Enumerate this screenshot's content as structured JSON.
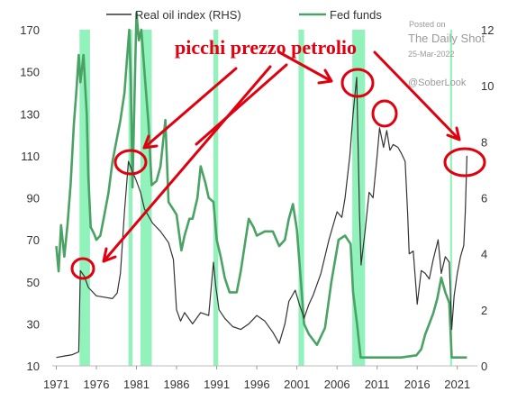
{
  "chart_data": {
    "type": "line",
    "title": "",
    "legend": {
      "placement": "top",
      "entries": [
        {
          "name": "Real oil index (RHS)",
          "color": "#333333"
        },
        {
          "name": "Fed funds",
          "color": "#4aa365"
        }
      ]
    },
    "y_left": {
      "ticks": [
        "170",
        "150",
        "130",
        "110",
        "90",
        "70",
        "50",
        "30",
        "10"
      ],
      "range": [
        10,
        170
      ]
    },
    "y_right": {
      "ticks": [
        "12",
        "10",
        "8",
        "6",
        "4",
        "2",
        "0"
      ],
      "range": [
        0,
        12
      ]
    },
    "x": {
      "ticks": [
        "1971",
        "1976",
        "1981",
        "1986",
        "1991",
        "1996",
        "2001",
        "2006",
        "2011",
        "2016",
        "2021"
      ],
      "range": [
        1970.5,
        2023.5
      ]
    },
    "recessions": [
      [
        1973.9,
        1975.2
      ],
      [
        1980.0,
        1980.5
      ],
      [
        1981.5,
        1982.9
      ],
      [
        1990.6,
        1991.2
      ],
      [
        2001.2,
        2001.9
      ],
      [
        2007.9,
        2009.5
      ],
      [
        2020.1,
        2020.35
      ]
    ],
    "series": [
      {
        "name": "Fed funds",
        "axis": "left",
        "color": "#4aa365",
        "points": [
          [
            1971.0,
            67
          ],
          [
            1971.3,
            55
          ],
          [
            1971.6,
            77
          ],
          [
            1972.0,
            62
          ],
          [
            1972.4,
            77
          ],
          [
            1972.8,
            97
          ],
          [
            1973.2,
            125
          ],
          [
            1973.5,
            140
          ],
          [
            1973.8,
            158
          ],
          [
            1974.0,
            145
          ],
          [
            1974.4,
            158
          ],
          [
            1974.8,
            130
          ],
          [
            1975.0,
            100
          ],
          [
            1975.3,
            76
          ],
          [
            1975.7,
            73
          ],
          [
            1976.0,
            70
          ],
          [
            1976.5,
            72
          ],
          [
            1977.0,
            82
          ],
          [
            1977.5,
            92
          ],
          [
            1978.0,
            107
          ],
          [
            1978.5,
            117
          ],
          [
            1979.0,
            127
          ],
          [
            1979.5,
            140
          ],
          [
            1979.8,
            155
          ],
          [
            1980.1,
            170
          ],
          [
            1980.3,
            145
          ],
          [
            1980.5,
            95
          ],
          [
            1980.8,
            145
          ],
          [
            1981.0,
            178
          ],
          [
            1981.3,
            165
          ],
          [
            1981.6,
            170
          ],
          [
            1982.0,
            150
          ],
          [
            1982.5,
            125
          ],
          [
            1982.9,
            96
          ],
          [
            1983.5,
            98
          ],
          [
            1984.0,
            105
          ],
          [
            1984.6,
            127
          ],
          [
            1985.0,
            88
          ],
          [
            1985.5,
            85
          ],
          [
            1986.0,
            82
          ],
          [
            1986.6,
            65
          ],
          [
            1987.0,
            72
          ],
          [
            1987.6,
            80
          ],
          [
            1988.0,
            80
          ],
          [
            1988.6,
            90
          ],
          [
            1989.0,
            105
          ],
          [
            1989.6,
            97
          ],
          [
            1990.0,
            90
          ],
          [
            1990.6,
            88
          ],
          [
            1991.0,
            70
          ],
          [
            1991.5,
            62
          ],
          [
            1992.0,
            52
          ],
          [
            1992.6,
            45
          ],
          [
            1993.0,
            45
          ],
          [
            1993.5,
            45
          ],
          [
            1994.0,
            55
          ],
          [
            1994.6,
            70
          ],
          [
            1995.0,
            80
          ],
          [
            1995.6,
            76
          ],
          [
            1996.0,
            72
          ],
          [
            1997.0,
            74
          ],
          [
            1998.0,
            74
          ],
          [
            1998.8,
            67
          ],
          [
            1999.5,
            70
          ],
          [
            2000.0,
            80
          ],
          [
            2000.5,
            87
          ],
          [
            2001.0,
            75
          ],
          [
            2001.5,
            50
          ],
          [
            2001.9,
            30
          ],
          [
            2002.5,
            25
          ],
          [
            2003.5,
            20
          ],
          [
            2004.5,
            28
          ],
          [
            2005.3,
            50
          ],
          [
            2006.2,
            70
          ],
          [
            2007.0,
            72
          ],
          [
            2007.7,
            68
          ],
          [
            2008.0,
            45
          ],
          [
            2008.5,
            30
          ],
          [
            2008.95,
            14
          ],
          [
            2010.0,
            14
          ],
          [
            2012.0,
            14
          ],
          [
            2014.0,
            14
          ],
          [
            2015.9,
            15
          ],
          [
            2016.5,
            18
          ],
          [
            2017.0,
            25
          ],
          [
            2017.5,
            30
          ],
          [
            2018.0,
            35
          ],
          [
            2018.5,
            42
          ],
          [
            2019.0,
            52
          ],
          [
            2019.5,
            45
          ],
          [
            2020.0,
            40
          ],
          [
            2020.3,
            14
          ],
          [
            2021.0,
            14
          ],
          [
            2022.2,
            14
          ]
        ]
      },
      {
        "name": "Real oil index (RHS)",
        "axis": "right",
        "color": "#333333",
        "points": [
          [
            1971.0,
            0.3
          ],
          [
            1972.0,
            0.35
          ],
          [
            1973.0,
            0.4
          ],
          [
            1973.8,
            0.5
          ],
          [
            1974.0,
            3.4
          ],
          [
            1974.5,
            3.2
          ],
          [
            1975.0,
            2.8
          ],
          [
            1976.0,
            2.5
          ],
          [
            1977.0,
            2.45
          ],
          [
            1978.0,
            2.4
          ],
          [
            1978.6,
            2.6
          ],
          [
            1979.0,
            3.3
          ],
          [
            1979.5,
            5.5
          ],
          [
            1980.0,
            7.3
          ],
          [
            1980.4,
            7.0
          ],
          [
            1981.0,
            6.6
          ],
          [
            1981.5,
            6.2
          ],
          [
            1982.0,
            5.6
          ],
          [
            1983.0,
            5.1
          ],
          [
            1984.0,
            4.8
          ],
          [
            1985.0,
            4.4
          ],
          [
            1985.6,
            3.8
          ],
          [
            1986.0,
            2.0
          ],
          [
            1986.5,
            1.6
          ],
          [
            1987.0,
            1.9
          ],
          [
            1988.0,
            1.5
          ],
          [
            1989.0,
            1.9
          ],
          [
            1990.0,
            1.8
          ],
          [
            1990.6,
            3.7
          ],
          [
            1990.9,
            2.8
          ],
          [
            1991.3,
            2.0
          ],
          [
            1992.0,
            1.7
          ],
          [
            1993.0,
            1.4
          ],
          [
            1994.0,
            1.3
          ],
          [
            1995.0,
            1.5
          ],
          [
            1996.0,
            1.8
          ],
          [
            1997.0,
            1.6
          ],
          [
            1998.0,
            1.2
          ],
          [
            1998.8,
            0.8
          ],
          [
            1999.5,
            1.5
          ],
          [
            2000.0,
            2.3
          ],
          [
            2000.8,
            2.7
          ],
          [
            2001.3,
            2.2
          ],
          [
            2001.9,
            1.7
          ],
          [
            2002.5,
            2.2
          ],
          [
            2003.0,
            2.5
          ],
          [
            2004.0,
            3.3
          ],
          [
            2005.0,
            4.5
          ],
          [
            2006.0,
            5.5
          ],
          [
            2006.6,
            5.3
          ],
          [
            2007.0,
            6.0
          ],
          [
            2007.6,
            7.5
          ],
          [
            2008.0,
            9.0
          ],
          [
            2008.45,
            10.3
          ],
          [
            2008.8,
            5.5
          ],
          [
            2009.0,
            3.6
          ],
          [
            2009.5,
            4.8
          ],
          [
            2010.0,
            6.2
          ],
          [
            2010.5,
            6.0
          ],
          [
            2011.0,
            7.5
          ],
          [
            2011.3,
            8.5
          ],
          [
            2011.8,
            7.8
          ],
          [
            2012.2,
            8.4
          ],
          [
            2012.6,
            7.7
          ],
          [
            2013.0,
            7.9
          ],
          [
            2013.6,
            7.8
          ],
          [
            2014.0,
            7.6
          ],
          [
            2014.5,
            7.3
          ],
          [
            2014.8,
            5.5
          ],
          [
            2015.0,
            4.0
          ],
          [
            2015.5,
            4.1
          ],
          [
            2015.9,
            2.6
          ],
          [
            2016.0,
            2.2
          ],
          [
            2016.5,
            3.4
          ],
          [
            2017.0,
            3.3
          ],
          [
            2017.5,
            3.1
          ],
          [
            2018.0,
            3.8
          ],
          [
            2018.6,
            4.5
          ],
          [
            2019.0,
            3.3
          ],
          [
            2019.5,
            3.9
          ],
          [
            2020.0,
            3.7
          ],
          [
            2020.3,
            1.3
          ],
          [
            2020.6,
            2.5
          ],
          [
            2021.0,
            3.3
          ],
          [
            2021.4,
            3.9
          ],
          [
            2021.8,
            4.3
          ],
          [
            2022.0,
            5.5
          ],
          [
            2022.2,
            7.5
          ]
        ]
      }
    ],
    "annotations": [
      {
        "text": "picchi prezzo petrolio",
        "color": "#e0000f"
      }
    ],
    "watermark": {
      "line1": "Posted on",
      "line2": "The Daily Shot",
      "line3": "25-Mar-2022",
      "line4": "@SoberLook"
    }
  }
}
